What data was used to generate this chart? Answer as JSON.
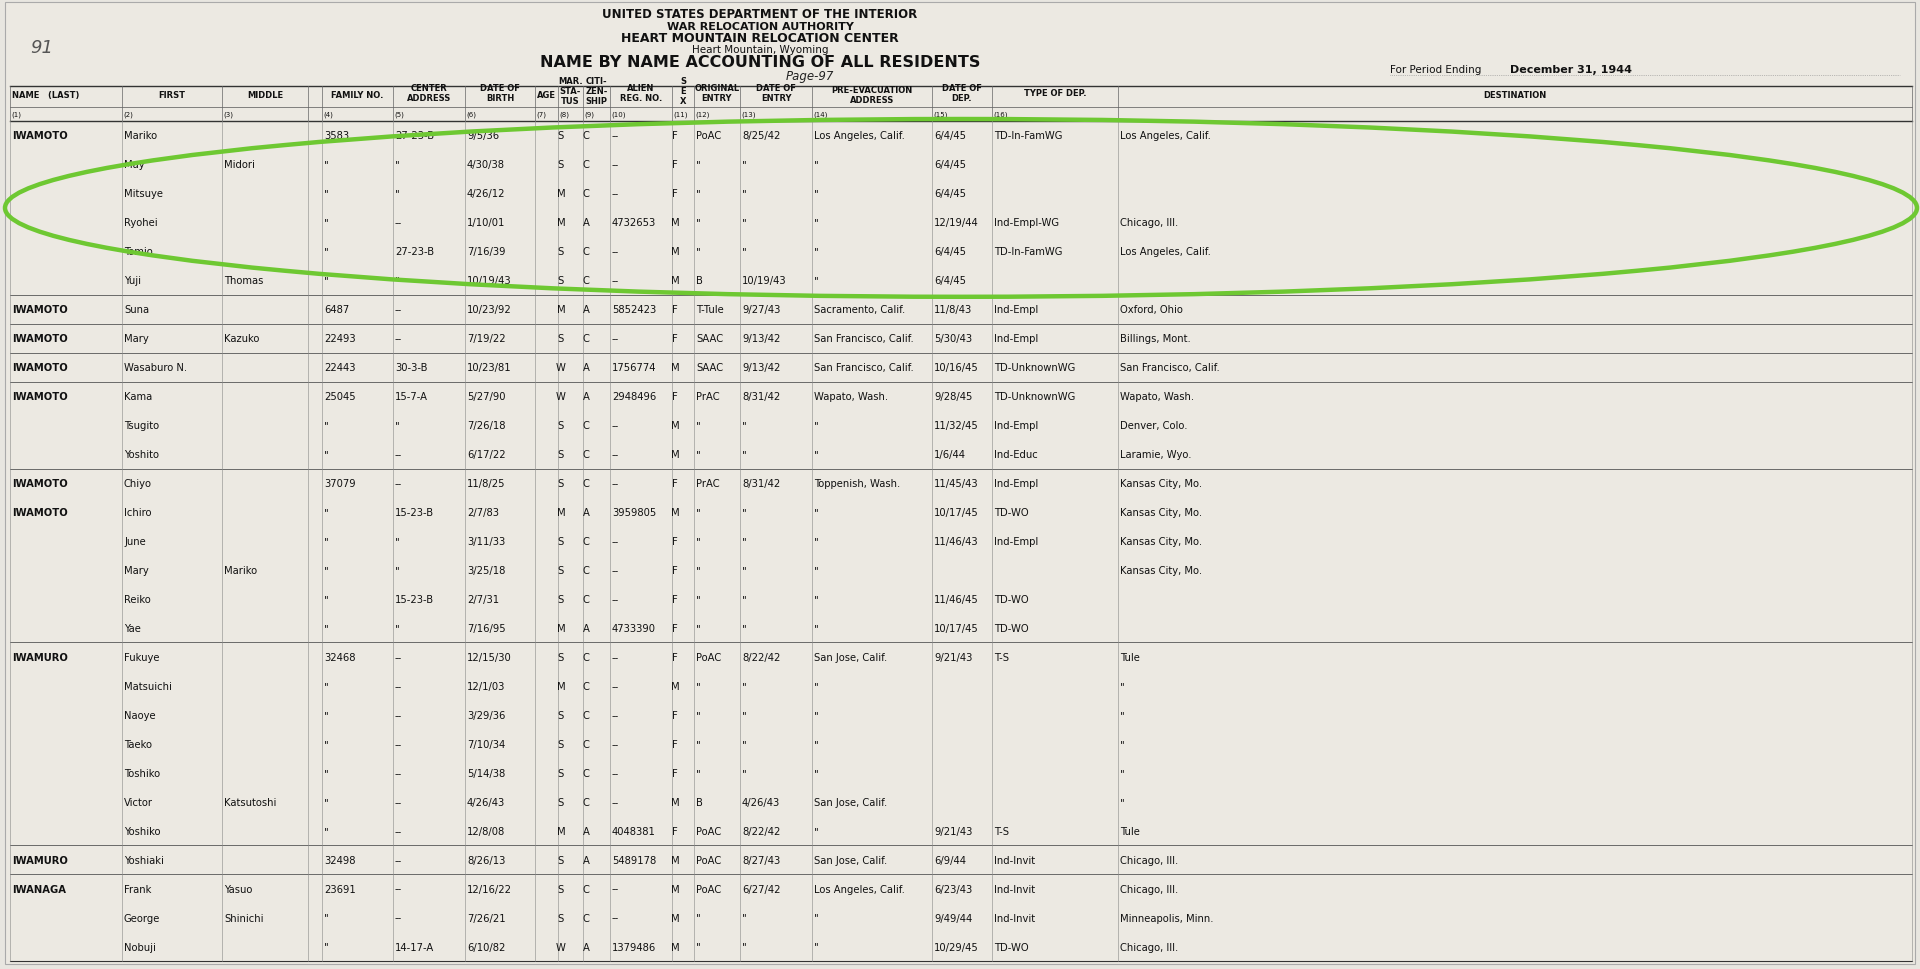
{
  "bg_color": "#e8e6e0",
  "paper_color": "#eceae4",
  "header": {
    "line1": "UNITED STATES DEPARTMENT OF THE INTERIOR",
    "line2": "WAR RELOCATION AUTHORITY",
    "line3": "HEART MOUNTAIN RELOCATION CENTER",
    "line4": "Heart Mountain, Wyoming"
  },
  "title": "NAME BY NAME ACCOUNTING OF ALL RESIDENTS",
  "page_ref": "Page-97",
  "period_label": "For Period Ending",
  "period_date": "December 31, 1944",
  "page_number": "91",
  "rows": [
    {
      "last": "IWAMOTO",
      "first": "Mariko",
      "middle": "",
      "fam_no": "3583",
      "center": "27-23-B",
      "dob": "9/5/36",
      "mar": "S",
      "cit": "C",
      "alien": "--",
      "sex": "F",
      "orig": "PoAC",
      "date_entry": "8/25/42",
      "pre_evac": "Los Angeles, Calif.",
      "date_dep": "6/4/45",
      "type_dep": "TD-In-FamWG",
      "dest": "Los Angeles, Calif.",
      "circled": true,
      "bold_last": true,
      "group_start": true
    },
    {
      "last": "",
      "first": "May",
      "middle": "Midori",
      "fam_no": "\"",
      "center": "\"",
      "dob": "4/30/38",
      "mar": "S",
      "cit": "C",
      "alien": "--",
      "sex": "F",
      "orig": "\"",
      "date_entry": "\"",
      "pre_evac": "\"",
      "date_dep": "6/4/45",
      "type_dep": "",
      "dest": "",
      "circled": true,
      "bold_last": false,
      "group_start": false
    },
    {
      "last": "",
      "first": "Mitsuye",
      "middle": "",
      "fam_no": "\"",
      "center": "\"",
      "dob": "4/26/12",
      "mar": "M",
      "cit": "C",
      "alien": "--",
      "sex": "F",
      "orig": "\"",
      "date_entry": "\"",
      "pre_evac": "\"",
      "date_dep": "6/4/45",
      "type_dep": "",
      "dest": "",
      "circled": true,
      "bold_last": false,
      "group_start": false
    },
    {
      "last": "",
      "first": "Ryohei",
      "middle": "",
      "fam_no": "\"",
      "center": "--",
      "dob": "1/10/01",
      "mar": "M",
      "cit": "A",
      "alien": "4732653",
      "sex": "M",
      "orig": "\"",
      "date_entry": "\"",
      "pre_evac": "\"",
      "date_dep": "12/19/44",
      "type_dep": "Ind-Empl-WG",
      "dest": "Chicago, Ill.",
      "circled": true,
      "bold_last": false,
      "group_start": false
    },
    {
      "last": "",
      "first": "Tomio",
      "middle": "",
      "fam_no": "\"",
      "center": "27-23-B",
      "dob": "7/16/39",
      "mar": "S",
      "cit": "C",
      "alien": "--",
      "sex": "M",
      "orig": "\"",
      "date_entry": "\"",
      "pre_evac": "\"",
      "date_dep": "6/4/45",
      "type_dep": "TD-In-FamWG",
      "dest": "Los Angeles, Calif.",
      "circled": true,
      "bold_last": false,
      "group_start": false
    },
    {
      "last": "",
      "first": "Yuji",
      "middle": "Thomas",
      "fam_no": "\"",
      "center": "\"",
      "dob": "10/19/43",
      "mar": "S",
      "cit": "C",
      "alien": "--",
      "sex": "M",
      "orig": "B",
      "date_entry": "10/19/43",
      "pre_evac": "\"",
      "date_dep": "6/4/45",
      "type_dep": "",
      "dest": "",
      "circled": true,
      "bold_last": false,
      "group_start": false
    },
    {
      "last": "IWAMOTO",
      "first": "Suna",
      "middle": "",
      "fam_no": "6487",
      "center": "--",
      "dob": "10/23/92",
      "mar": "M",
      "cit": "A",
      "alien": "5852423",
      "sex": "F",
      "orig": "T-Tule",
      "date_entry": "9/27/43",
      "pre_evac": "Sacramento, Calif.",
      "date_dep": "11/8/43",
      "type_dep": "Ind-Empl",
      "dest": "Oxford, Ohio",
      "circled": false,
      "bold_last": true,
      "group_start": true
    },
    {
      "last": "IWAMOTO",
      "first": "Mary",
      "middle": "Kazuko",
      "fam_no": "22493",
      "center": "--",
      "dob": "7/19/22",
      "mar": "S",
      "cit": "C",
      "alien": "--",
      "sex": "F",
      "orig": "SAAC",
      "date_entry": "9/13/42",
      "pre_evac": "San Francisco, Calif.",
      "date_dep": "5/30/43",
      "type_dep": "Ind-Empl",
      "dest": "Billings, Mont.",
      "circled": false,
      "bold_last": true,
      "group_start": true
    },
    {
      "last": "IWAMOTO",
      "first": "Wasaburo N.",
      "middle": "",
      "fam_no": "22443",
      "center": "30-3-B",
      "dob": "10/23/81",
      "mar": "W",
      "cit": "A",
      "alien": "1756774",
      "sex": "M",
      "orig": "SAAC",
      "date_entry": "9/13/42",
      "pre_evac": "San Francisco, Calif.",
      "date_dep": "10/16/45",
      "type_dep": "TD-UnknownWG",
      "dest": "San Francisco, Calif.",
      "circled": false,
      "bold_last": true,
      "group_start": true
    },
    {
      "last": "IWAMOTO",
      "first": "Kama",
      "middle": "",
      "fam_no": "25045",
      "center": "15-7-A",
      "dob": "5/27/90",
      "mar": "W",
      "cit": "A",
      "alien": "2948496",
      "sex": "F",
      "orig": "PrAC",
      "date_entry": "8/31/42",
      "pre_evac": "Wapato, Wash.",
      "date_dep": "9/28/45",
      "type_dep": "TD-UnknownWG",
      "dest": "Wapato, Wash.",
      "circled": false,
      "bold_last": true,
      "group_start": true
    },
    {
      "last": "",
      "first": "Tsugito",
      "middle": "",
      "fam_no": "\"",
      "center": "\"",
      "dob": "7/26/18",
      "mar": "S",
      "cit": "C",
      "alien": "--",
      "sex": "M",
      "orig": "\"",
      "date_entry": "\"",
      "pre_evac": "\"",
      "date_dep": "11/32/45",
      "type_dep": "Ind-Empl",
      "dest": "Denver, Colo.",
      "circled": false,
      "bold_last": false,
      "group_start": false
    },
    {
      "last": "",
      "first": "Yoshito",
      "middle": "",
      "fam_no": "\"",
      "center": "--",
      "dob": "6/17/22",
      "mar": "S",
      "cit": "C",
      "alien": "--",
      "sex": "M",
      "orig": "\"",
      "date_entry": "\"",
      "pre_evac": "\"",
      "date_dep": "1/6/44",
      "type_dep": "Ind-Educ",
      "dest": "Laramie, Wyo.",
      "circled": false,
      "bold_last": false,
      "group_start": false
    },
    {
      "last": "IWAMOTO",
      "first": "Chiyo",
      "middle": "",
      "fam_no": "37079",
      "center": "--",
      "dob": "11/8/25",
      "mar": "S",
      "cit": "C",
      "alien": "--",
      "sex": "F",
      "orig": "PrAC",
      "date_entry": "8/31/42",
      "pre_evac": "Toppenish, Wash.",
      "date_dep": "11/45/43",
      "type_dep": "Ind-Empl",
      "dest": "Kansas City, Mo.",
      "circled": false,
      "bold_last": true,
      "group_start": true
    },
    {
      "last": "IWAMOTO",
      "first": "Ichiro",
      "middle": "",
      "fam_no": "\"",
      "center": "15-23-B",
      "dob": "2/7/83",
      "mar": "M",
      "cit": "A",
      "alien": "3959805",
      "sex": "M",
      "orig": "\"",
      "date_entry": "\"",
      "pre_evac": "\"",
      "date_dep": "10/17/45",
      "type_dep": "TD-WO",
      "dest": "Kansas City, Mo.",
      "circled": false,
      "bold_last": true,
      "group_start": false
    },
    {
      "last": "",
      "first": "June",
      "middle": "",
      "fam_no": "\"",
      "center": "\"",
      "dob": "3/11/33",
      "mar": "S",
      "cit": "C",
      "alien": "--",
      "sex": "F",
      "orig": "\"",
      "date_entry": "\"",
      "pre_evac": "\"",
      "date_dep": "11/46/43",
      "type_dep": "Ind-Empl",
      "dest": "Kansas City, Mo.",
      "circled": false,
      "bold_last": false,
      "group_start": false
    },
    {
      "last": "",
      "first": "Mary",
      "middle": "Mariko",
      "fam_no": "\"",
      "center": "\"",
      "dob": "3/25/18",
      "mar": "S",
      "cit": "C",
      "alien": "--",
      "sex": "F",
      "orig": "\"",
      "date_entry": "\"",
      "pre_evac": "\"",
      "date_dep": "",
      "type_dep": "",
      "dest": "Kansas City, Mo.",
      "circled": false,
      "bold_last": false,
      "group_start": false
    },
    {
      "last": "",
      "first": "Reiko",
      "middle": "",
      "fam_no": "\"",
      "center": "15-23-B",
      "dob": "2/7/31",
      "mar": "S",
      "cit": "C",
      "alien": "--",
      "sex": "F",
      "orig": "\"",
      "date_entry": "\"",
      "pre_evac": "\"",
      "date_dep": "11/46/45",
      "type_dep": "TD-WO",
      "dest": "",
      "circled": false,
      "bold_last": false,
      "group_start": false
    },
    {
      "last": "",
      "first": "Yae",
      "middle": "",
      "fam_no": "\"",
      "center": "\"",
      "dob": "7/16/95",
      "mar": "M",
      "cit": "A",
      "alien": "4733390",
      "sex": "F",
      "orig": "\"",
      "date_entry": "\"",
      "pre_evac": "\"",
      "date_dep": "10/17/45",
      "type_dep": "TD-WO",
      "dest": "",
      "circled": false,
      "bold_last": false,
      "group_start": false
    },
    {
      "last": "IWAMURO",
      "first": "Fukuye",
      "middle": "",
      "fam_no": "32468",
      "center": "--",
      "dob": "12/15/30",
      "mar": "S",
      "cit": "C",
      "alien": "--",
      "sex": "F",
      "orig": "PoAC",
      "date_entry": "8/22/42",
      "pre_evac": "San Jose, Calif.",
      "date_dep": "9/21/43",
      "type_dep": "T-S",
      "dest": "Tule",
      "circled": false,
      "bold_last": true,
      "group_start": true
    },
    {
      "last": "",
      "first": "Matsuichi",
      "middle": "",
      "fam_no": "\"",
      "center": "--",
      "dob": "12/1/03",
      "mar": "M",
      "cit": "C",
      "alien": "--",
      "sex": "M",
      "orig": "\"",
      "date_entry": "\"",
      "pre_evac": "\"",
      "date_dep": "",
      "type_dep": "",
      "dest": "\"",
      "circled": false,
      "bold_last": false,
      "group_start": false
    },
    {
      "last": "",
      "first": "Naoye",
      "middle": "",
      "fam_no": "\"",
      "center": "--",
      "dob": "3/29/36",
      "mar": "S",
      "cit": "C",
      "alien": "--",
      "sex": "F",
      "orig": "\"",
      "date_entry": "\"",
      "pre_evac": "\"",
      "date_dep": "",
      "type_dep": "",
      "dest": "\"",
      "circled": false,
      "bold_last": false,
      "group_start": false
    },
    {
      "last": "",
      "first": "Taeko",
      "middle": "",
      "fam_no": "\"",
      "center": "--",
      "dob": "7/10/34",
      "mar": "S",
      "cit": "C",
      "alien": "--",
      "sex": "F",
      "orig": "\"",
      "date_entry": "\"",
      "pre_evac": "\"",
      "date_dep": "",
      "type_dep": "",
      "dest": "\"",
      "circled": false,
      "bold_last": false,
      "group_start": false
    },
    {
      "last": "",
      "first": "Toshiko",
      "middle": "",
      "fam_no": "\"",
      "center": "--",
      "dob": "5/14/38",
      "mar": "S",
      "cit": "C",
      "alien": "--",
      "sex": "F",
      "orig": "\"",
      "date_entry": "\"",
      "pre_evac": "\"",
      "date_dep": "",
      "type_dep": "",
      "dest": "\"",
      "circled": false,
      "bold_last": false,
      "group_start": false
    },
    {
      "last": "",
      "first": "Victor",
      "middle": "Katsutoshi",
      "fam_no": "\"",
      "center": "--",
      "dob": "4/26/43",
      "mar": "S",
      "cit": "C",
      "alien": "--",
      "sex": "M",
      "orig": "B",
      "date_entry": "4/26/43",
      "pre_evac": "San Jose, Calif.",
      "date_dep": "",
      "type_dep": "",
      "dest": "\"",
      "circled": false,
      "bold_last": false,
      "group_start": false
    },
    {
      "last": "",
      "first": "Yoshiko",
      "middle": "",
      "fam_no": "\"",
      "center": "--",
      "dob": "12/8/08",
      "mar": "M",
      "cit": "A",
      "alien": "4048381",
      "sex": "F",
      "orig": "PoAC",
      "date_entry": "8/22/42",
      "pre_evac": "\"",
      "date_dep": "9/21/43",
      "type_dep": "T-S",
      "dest": "Tule",
      "circled": false,
      "bold_last": false,
      "group_start": false
    },
    {
      "last": "IWAMURO",
      "first": "Yoshiaki",
      "middle": "",
      "fam_no": "32498",
      "center": "--",
      "dob": "8/26/13",
      "mar": "S",
      "cit": "A",
      "alien": "5489178",
      "sex": "M",
      "orig": "PoAC",
      "date_entry": "8/27/43",
      "pre_evac": "San Jose, Calif.",
      "date_dep": "6/9/44",
      "type_dep": "Ind-Invit",
      "dest": "Chicago, Ill.",
      "circled": false,
      "bold_last": true,
      "group_start": true
    },
    {
      "last": "IWANAGA",
      "first": "Frank",
      "middle": "Yasuo",
      "fam_no": "23691",
      "center": "--",
      "dob": "12/16/22",
      "mar": "S",
      "cit": "C",
      "alien": "--",
      "sex": "M",
      "orig": "PoAC",
      "date_entry": "6/27/42",
      "pre_evac": "Los Angeles, Calif.",
      "date_dep": "6/23/43",
      "type_dep": "Ind-Invit",
      "dest": "Chicago, Ill.",
      "circled": false,
      "bold_last": true,
      "group_start": true
    },
    {
      "last": "",
      "first": "George",
      "middle": "Shinichi",
      "fam_no": "\"",
      "center": "--",
      "dob": "7/26/21",
      "mar": "S",
      "cit": "C",
      "alien": "--",
      "sex": "M",
      "orig": "\"",
      "date_entry": "\"",
      "pre_evac": "\"",
      "date_dep": "9/49/44",
      "type_dep": "Ind-Invit",
      "dest": "Minneapolis, Minn.",
      "circled": false,
      "bold_last": false,
      "group_start": false
    },
    {
      "last": "",
      "first": "Nobuji",
      "middle": "",
      "fam_no": "\"",
      "center": "14-17-A",
      "dob": "6/10/82",
      "mar": "W",
      "cit": "A",
      "alien": "1379486",
      "sex": "M",
      "orig": "\"",
      "date_entry": "\"",
      "pre_evac": "\"",
      "date_dep": "10/29/45",
      "type_dep": "TD-WO",
      "dest": "Chicago, Ill.",
      "circled": false,
      "bold_last": false,
      "group_start": false
    }
  ],
  "circle_color": "#6ec832",
  "text_color": "#111111",
  "line_color": "#555555"
}
